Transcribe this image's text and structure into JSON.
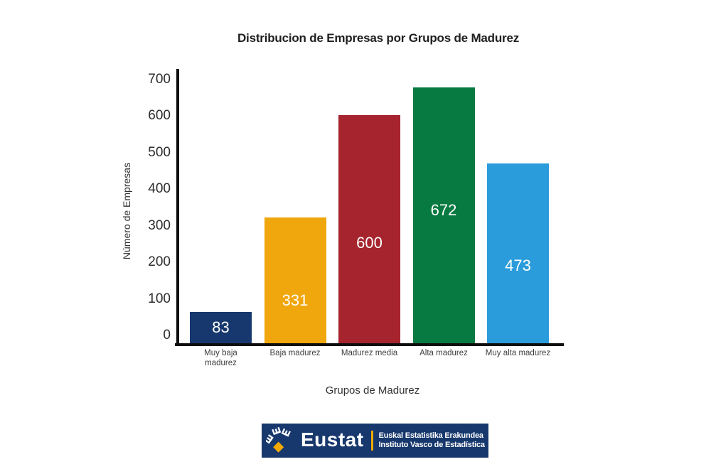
{
  "page": {
    "background": "#ffffff"
  },
  "chart_data": {
    "type": "bar",
    "title": "Distribucion de Empresas por Grupos de Madurez",
    "xlabel": "Grupos de Madurez",
    "ylabel": "Número de Empresas",
    "categories": [
      "Muy baja madurez",
      "Baja madurez",
      "Madurez media",
      "Alta madurez",
      "Muy alta madurez"
    ],
    "category_label_lines": [
      [
        "Muy baja",
        "madurez"
      ],
      [
        "Baja madurez"
      ],
      [
        "Madurez media"
      ],
      [
        "Alta madurez"
      ],
      [
        "Muy alta madurez"
      ]
    ],
    "values": [
      83,
      331,
      600,
      672,
      473
    ],
    "value_labels": [
      "83",
      "331",
      "600",
      "672",
      "473"
    ],
    "bar_colors": [
      "#16386e",
      "#f0a60d",
      "#a5242e",
      "#077a41",
      "#2b9cdb"
    ],
    "value_label_color": "#ffffff",
    "axis_color": "#0d0d0d",
    "ylim": [
      0,
      700
    ],
    "yticks": [
      0,
      100,
      200,
      300,
      400,
      500,
      600,
      700
    ],
    "grid": false,
    "legend": "none",
    "value_label_pos_frac": [
      0.5,
      0.66,
      0.56,
      0.48,
      0.57
    ]
  },
  "footer": {
    "brand": "Eustat",
    "org_line1": "Euskal Estatistika Erakundea",
    "org_line2": "Instituto Vasco de Estadística",
    "background": "#17386d",
    "accent": "#f2a900",
    "logo": "eustat-diamond-logo"
  }
}
